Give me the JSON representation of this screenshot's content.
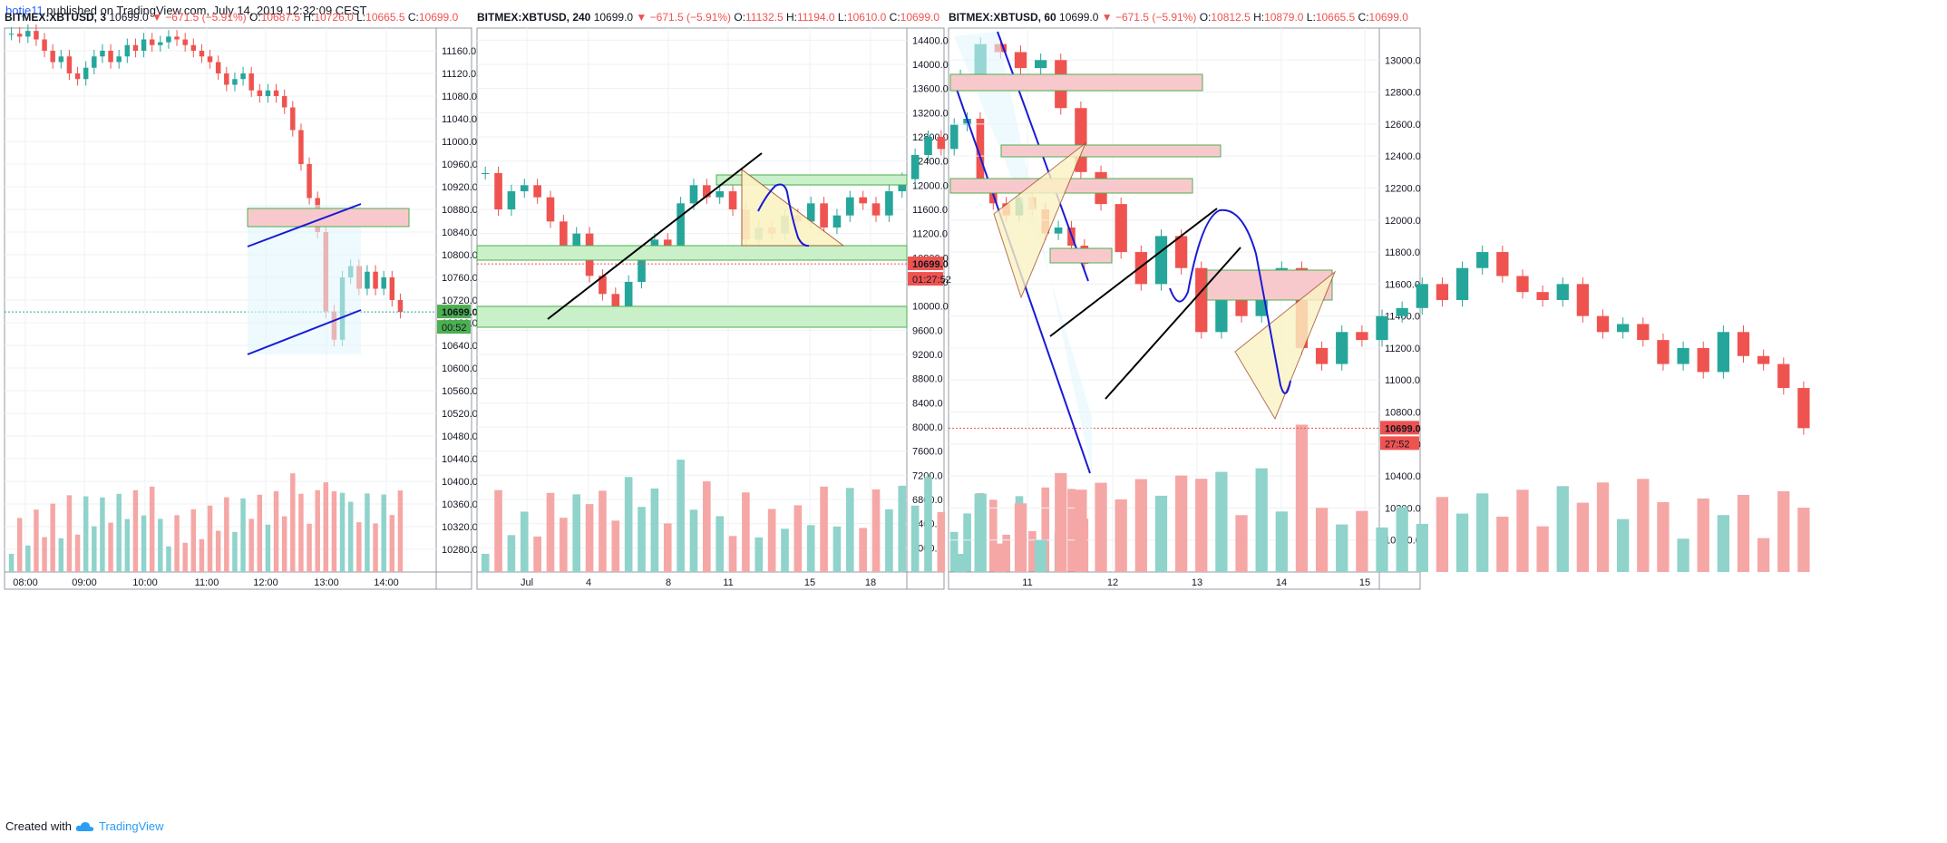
{
  "header": {
    "author": "botje11",
    "text": " published on TradingView.com, July 14, 2019 12:32:09 CEST"
  },
  "footer": {
    "created_with": "Created with",
    "brand": "TradingView"
  },
  "colors": {
    "up": "#26a69a",
    "down": "#ef5350",
    "up_vol": "#8fd3cb",
    "down_vol": "#f5a7a6",
    "price_label": "#ef5350",
    "price_label_green": "#4caf50",
    "zone_red_fill": "#f8c9cc",
    "zone_green_fill": "#c9f0c9",
    "zone_border": "#4caf50",
    "line_blue": "#1a1ad6",
    "line_black": "#000000",
    "triangle_fill": "#fbf3c4",
    "triangle_border": "#a0522d",
    "shade": "#e3f6fb"
  },
  "chart_data": [
    {
      "type": "candlestick",
      "symbol": "BITMEX:XBTUSD",
      "interval": "3",
      "last": "10699.0",
      "change": "−671.5 (−5.91%)",
      "open": "10687.5",
      "high": "10726.0",
      "low": "10665.5",
      "close": "10699.0",
      "ylim": [
        10240,
        11200
      ],
      "y_ticks": [
        11160,
        11120,
        11080,
        11040,
        11000,
        10960,
        10920,
        10880,
        10840,
        10800,
        10760,
        10720,
        10680,
        10640,
        10600,
        10560,
        10520,
        10480,
        10440,
        10400,
        10360,
        10320,
        10280
      ],
      "y_tick_labels": [
        "11160.0",
        "11120.0",
        "11080.0",
        "11040.0",
        "11000.0",
        "10960.0",
        "10920.0",
        "10880.0",
        "10840.0",
        "10800.0",
        "10760.0",
        "10720.0",
        "10680.0",
        "10640.0",
        "10600.0",
        "10560.0",
        "10520.0",
        "10480.0",
        "10440.0",
        "10400.0",
        "10360.0",
        "10320.0",
        "10280.0"
      ],
      "x_ticks": [
        "08:00",
        "09:00",
        "10:00",
        "11:00",
        "12:00",
        "13:00",
        "14:00"
      ],
      "price_badge": "10699.0",
      "countdown": "00:52",
      "closes": [
        11190,
        11185,
        11195,
        11180,
        11160,
        11140,
        11150,
        11120,
        11110,
        11130,
        11150,
        11160,
        11140,
        11150,
        11170,
        11160,
        11180,
        11170,
        11175,
        11185,
        11180,
        11170,
        11160,
        11150,
        11140,
        11120,
        11100,
        11110,
        11120,
        11090,
        11080,
        11090,
        11080,
        11060,
        11020,
        10960,
        10900,
        10840,
        10700,
        10650,
        10760,
        10780,
        10740,
        10770,
        10740,
        10760,
        10720,
        10699
      ]
    },
    {
      "type": "candlestick",
      "symbol": "BITMEX:XBTUSD",
      "interval": "240",
      "last": "10699.0",
      "change": "−671.5 (−5.91%)",
      "open": "11132.5",
      "high": "11194.0",
      "low": "10610.0",
      "close": "10699.0",
      "ylim": [
        5600,
        14600
      ],
      "y_ticks": [
        14400,
        14000,
        13600,
        13200,
        12800,
        12400,
        12000,
        11600,
        11200,
        10800,
        10400,
        10000,
        9600,
        9200,
        8800,
        8400,
        8000,
        7600,
        7200,
        6800,
        6400,
        6000
      ],
      "y_tick_labels": [
        "14400.0",
        "14000.0",
        "13600.0",
        "13200.0",
        "12800.0",
        "12400.0",
        "12000.0",
        "11600.0",
        "11200.0",
        "10800.0",
        "10400.0",
        "10000.0",
        "9600.0",
        "9200.0",
        "8800.0",
        "8400.0",
        "8000.0",
        "7600.0",
        "7200.0",
        "6800.0",
        "6400.0",
        "6000.0"
      ],
      "x_ticks": [
        "Jul",
        "4",
        "8",
        "11",
        "15",
        "18"
      ],
      "price_badge": "10699.0",
      "countdown": "01:27:52",
      "closes": [
        12200,
        11600,
        11900,
        12000,
        11800,
        11400,
        10900,
        11200,
        10500,
        10200,
        9900,
        10400,
        10900,
        11100,
        11000,
        11700,
        12000,
        11800,
        11900,
        11600,
        11100,
        11300,
        11200,
        11500,
        11400,
        11700,
        11300,
        11500,
        11800,
        11700,
        11500,
        11900,
        12100,
        12500,
        12800,
        12600,
        13000,
        13100,
        12000,
        11700,
        11500,
        11800,
        11600,
        11200,
        11300,
        11000,
        10699
      ]
    },
    {
      "type": "candlestick",
      "symbol": "BITMEX:XBTUSD",
      "interval": "60",
      "last": "10699.0",
      "change": "−671.5 (−5.91%)",
      "open": "10812.5",
      "high": "10879.0",
      "low": "10665.5",
      "close": "10699.0",
      "ylim": [
        9800,
        13200
      ],
      "y_ticks": [
        13000,
        12800,
        12600,
        12400,
        12200,
        12000,
        11800,
        11600,
        11400,
        11200,
        11000,
        10800,
        10600,
        10400,
        10200,
        10000
      ],
      "y_tick_labels": [
        "13000.0",
        "12800.0",
        "12600.0",
        "12400.0",
        "12200.0",
        "12000.0",
        "11800.0",
        "11600.0",
        "11400.0",
        "11200.0",
        "11000.0",
        "10800.0",
        "10600.0",
        "10400.0",
        "10200.0",
        "10000.0"
      ],
      "x_ticks": [
        "11",
        "12",
        "13",
        "14",
        "15"
      ],
      "price_badge": "10699.0",
      "countdown": "27:52",
      "closes": [
        12900,
        13100,
        13050,
        12950,
        13000,
        12700,
        12300,
        12100,
        11800,
        11600,
        11900,
        11700,
        11300,
        11500,
        11400,
        11600,
        11700,
        11200,
        11100,
        11300,
        11250,
        11400,
        11450,
        11600,
        11500,
        11700,
        11800,
        11650,
        11550,
        11500,
        11600,
        11400,
        11300,
        11350,
        11250,
        11100,
        11200,
        11050,
        11300,
        11150,
        11100,
        10950,
        10699
      ]
    }
  ]
}
